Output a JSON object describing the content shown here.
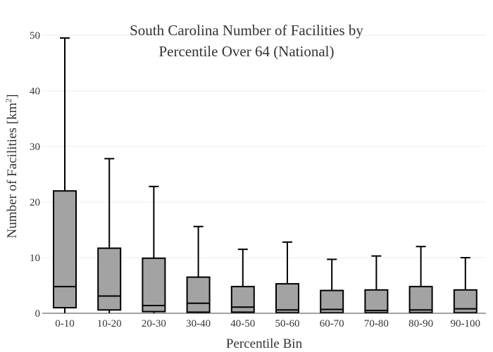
{
  "chart_data": {
    "type": "box",
    "title_lines": [
      "South Carolina Number of Facilities by",
      "Percentile Over 64 (National)"
    ],
    "xlabel": "Percentile Bin",
    "ylabel": "Number of Facilities  [km",
    "ylabel_sup": "2",
    "ylabel_close": "]",
    "ylim": [
      0,
      50
    ],
    "yticks": [
      0,
      10,
      20,
      30,
      40,
      50
    ],
    "ytick_labels": [
      "0",
      "10",
      "20",
      "30",
      "40",
      "50"
    ],
    "grid": true,
    "box_color": "#a3a3a3",
    "categories": [
      "0-10",
      "10-20",
      "20-30",
      "30-40",
      "40-50",
      "50-60",
      "60-70",
      "70-80",
      "80-90",
      "90-100"
    ],
    "boxes": [
      {
        "min": 0,
        "q1": 1.0,
        "median": 4.8,
        "q3": 22.0,
        "max": 49.5
      },
      {
        "min": 0,
        "q1": 0.6,
        "median": 3.1,
        "q3": 11.7,
        "max": 27.8
      },
      {
        "min": 0,
        "q1": 0.3,
        "median": 1.4,
        "q3": 9.9,
        "max": 22.8
      },
      {
        "min": 0,
        "q1": 0.2,
        "median": 1.8,
        "q3": 6.5,
        "max": 15.6
      },
      {
        "min": 0,
        "q1": 0.2,
        "median": 1.1,
        "q3": 4.8,
        "max": 11.5
      },
      {
        "min": 0,
        "q1": 0.1,
        "median": 0.6,
        "q3": 5.3,
        "max": 12.8
      },
      {
        "min": 0,
        "q1": 0.1,
        "median": 0.7,
        "q3": 4.1,
        "max": 9.7
      },
      {
        "min": 0,
        "q1": 0.1,
        "median": 0.5,
        "q3": 4.2,
        "max": 10.3
      },
      {
        "min": 0,
        "q1": 0.1,
        "median": 0.6,
        "q3": 4.8,
        "max": 12.0
      },
      {
        "min": 0,
        "q1": 0.1,
        "median": 0.8,
        "q3": 4.2,
        "max": 10.0
      }
    ]
  }
}
